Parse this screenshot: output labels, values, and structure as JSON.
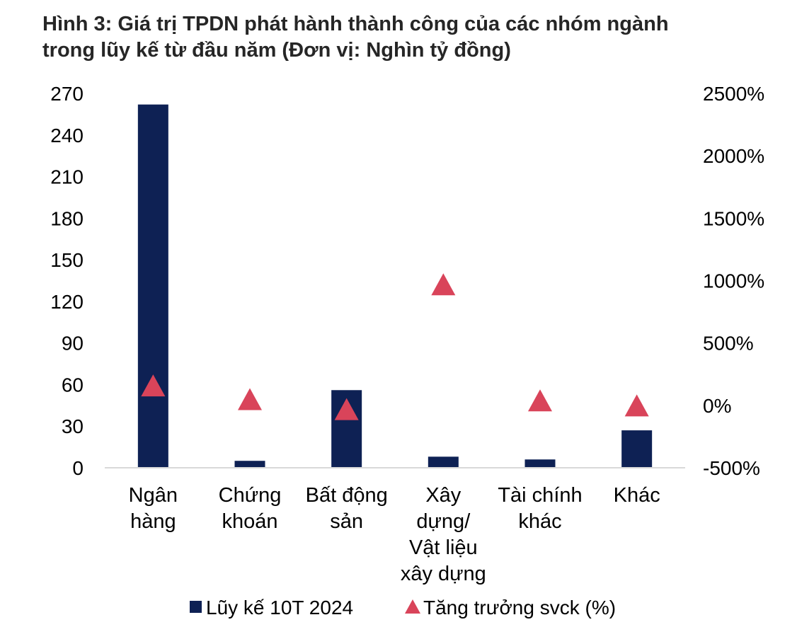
{
  "title": {
    "line1": "Hình 3: Giá trị TPDN phát hành thành công của các nhóm ngành",
    "line2": "trong lũy kế từ đầu năm (Đơn vị: Nghìn tỷ đồng)"
  },
  "colors": {
    "bar": "#0e2154",
    "marker": "#d9445a",
    "axis": "#d9d9d9"
  },
  "chart_data": {
    "type": "bar",
    "categories": [
      [
        "Ngân",
        "hàng"
      ],
      [
        "Chứng",
        "khoán"
      ],
      [
        "Bất động",
        "sản"
      ],
      [
        "Xây",
        "dựng/",
        "Vật liệu",
        "xây dựng"
      ],
      [
        "Tài chính",
        "khác"
      ],
      [
        "Khác"
      ]
    ],
    "series": [
      {
        "name": "Lũy kế 10T 2024",
        "type": "bar",
        "axis": "left",
        "values": [
          262,
          5,
          56,
          8,
          6,
          27
        ]
      },
      {
        "name": "Tăng trưởng svck (%)",
        "type": "scatter",
        "marker": "triangle",
        "axis": "right",
        "values": [
          160,
          50,
          -30,
          970,
          40,
          0
        ]
      }
    ],
    "y_left": {
      "min": 0,
      "max": 270,
      "ticks": [
        0,
        30,
        60,
        90,
        120,
        150,
        180,
        210,
        240,
        270
      ],
      "tick_labels": [
        "0",
        "30",
        "60",
        "90",
        "120",
        "150",
        "180",
        "210",
        "240",
        "270"
      ]
    },
    "y_right": {
      "min": -500,
      "max": 2500,
      "ticks": [
        -500,
        0,
        500,
        1000,
        1500,
        2000,
        2500
      ],
      "tick_labels": [
        "-500%",
        "0%",
        "500%",
        "1000%",
        "1500%",
        "2000%",
        "2500%"
      ]
    },
    "grid": false,
    "legend": "bottom"
  }
}
